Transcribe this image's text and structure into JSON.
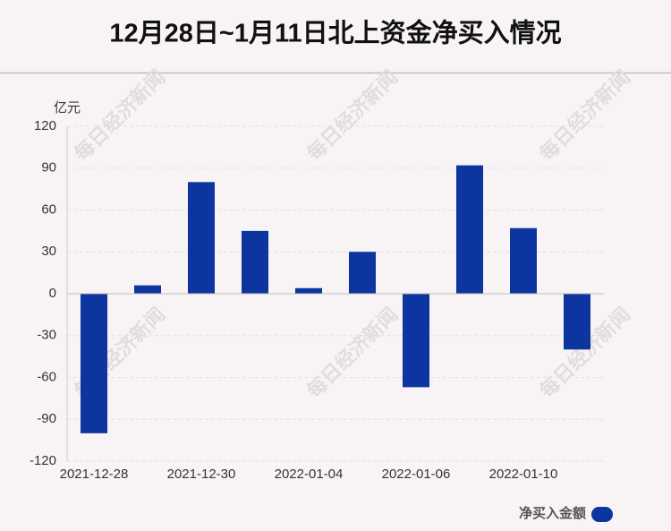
{
  "chart_data": {
    "type": "bar",
    "title": "12月28日~1月11日北上资金净买入情况",
    "y_unit": "亿元",
    "watermark": "每日经济新闻",
    "categories": [
      "2021-12-28",
      null,
      "2021-12-30",
      null,
      "2022-01-04",
      null,
      "2022-01-06",
      null,
      "2022-01-10",
      null
    ],
    "series": [
      {
        "name": "净买入金额",
        "color": "#0d35a0",
        "values": [
          -100,
          6,
          80,
          45,
          4,
          30,
          -67,
          92,
          47,
          -40
        ]
      }
    ],
    "ylim": [
      -120,
      120
    ],
    "yticks": [
      -120,
      -90,
      -60,
      -30,
      0,
      30,
      60,
      90,
      120
    ],
    "grid": true,
    "legend": "bottom-right"
  }
}
